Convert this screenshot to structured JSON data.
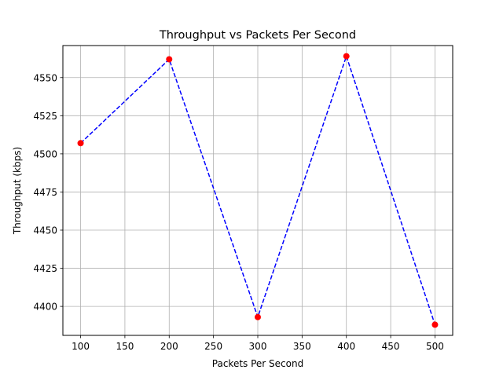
{
  "chart_data": {
    "type": "line",
    "title": "Throughput vs Packets Per Second",
    "xlabel": "Packets Per Second",
    "ylabel": "Throughput (kbps)",
    "x": [
      100,
      200,
      300,
      400,
      500
    ],
    "series": [
      {
        "values": [
          4507,
          4562,
          4393,
          4564,
          4388
        ],
        "line_color": "#0000ff",
        "line_style": "dashed",
        "marker_color": "#ff0000"
      }
    ],
    "xlim": [
      80,
      520
    ],
    "ylim": [
      4381,
      4571
    ],
    "xticks": [
      100,
      150,
      200,
      250,
      300,
      350,
      400,
      450,
      500
    ],
    "yticks": [
      4400,
      4425,
      4450,
      4475,
      4500,
      4525,
      4550
    ],
    "grid": true,
    "legend": "none"
  }
}
